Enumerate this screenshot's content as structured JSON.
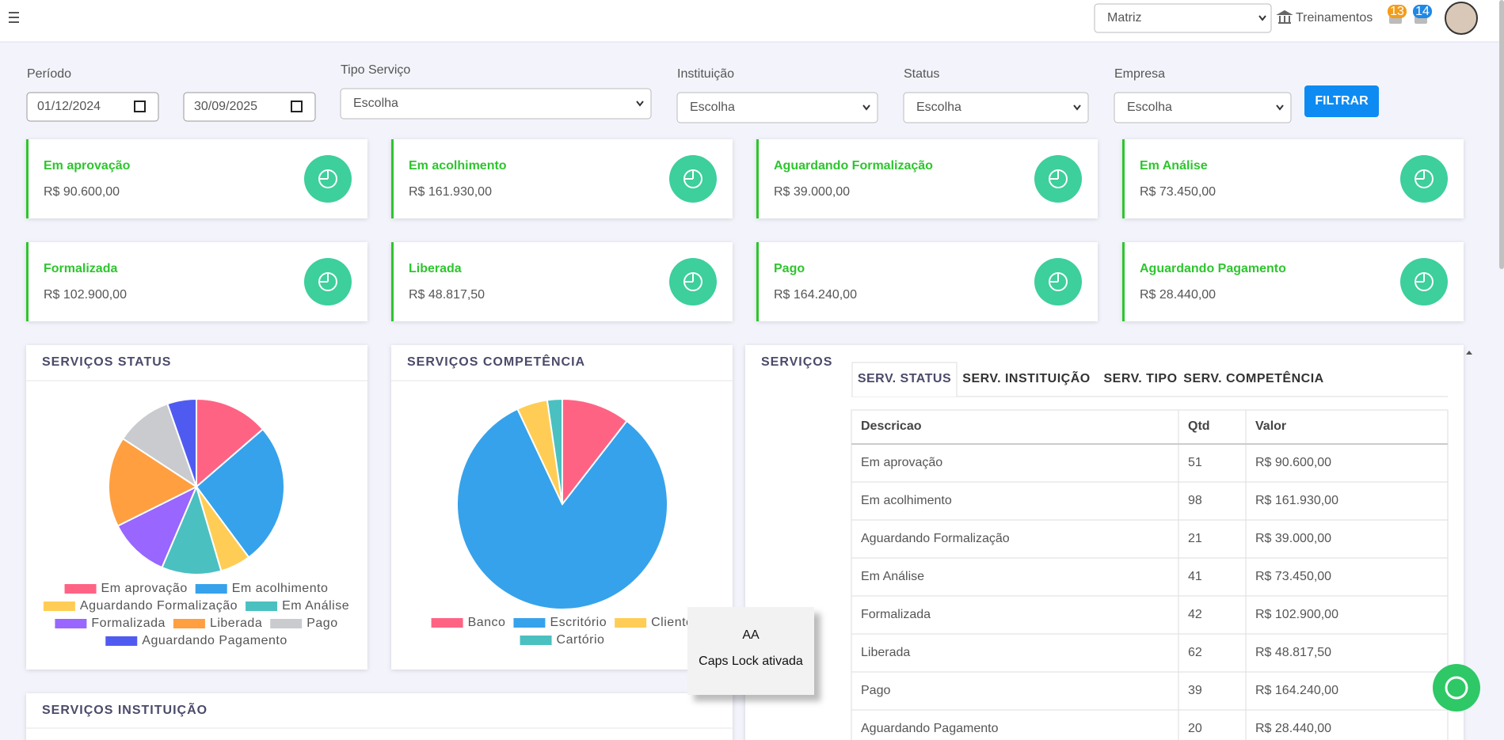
{
  "header": {
    "branch": "Matriz",
    "link": "Treinamentos",
    "badges": [
      "13",
      "14"
    ]
  },
  "filters": {
    "period_label": "Período",
    "start": "01/12/2024",
    "end": "30/09/2025",
    "fields": [
      {
        "label": "Tipo Serviço",
        "value": "Escolha"
      },
      {
        "label": "Instituição",
        "value": "Escolha"
      },
      {
        "label": "Status",
        "value": "Escolha"
      },
      {
        "label": "Empresa",
        "value": "Escolha"
      }
    ],
    "button": "FILTRAR"
  },
  "cards": [
    {
      "title": "Em aprovação",
      "value": "R$ 90.600,00"
    },
    {
      "title": "Em acolhimento",
      "value": "R$ 161.930,00"
    },
    {
      "title": "Aguardando Formalização",
      "value": "R$ 39.000,00"
    },
    {
      "title": "Em Análise",
      "value": "R$ 73.450,00"
    },
    {
      "title": "Formalizada",
      "value": "R$ 102.900,00"
    },
    {
      "title": "Liberada",
      "value": "R$ 48.817,50"
    },
    {
      "title": "Pago",
      "value": "R$ 164.240,00"
    },
    {
      "title": "Aguardando Pagamento",
      "value": "R$ 28.440,00"
    }
  ],
  "chart_data": [
    {
      "type": "pie",
      "title": "SERVIÇOS STATUS",
      "categories": [
        "Em aprovação",
        "Em acolhimento",
        "Aguardando Formalização",
        "Em Análise",
        "Formalizada",
        "Liberada",
        "Pago",
        "Aguardando Pagamento"
      ],
      "values": [
        51,
        98,
        21,
        41,
        42,
        62,
        39,
        20
      ],
      "colors": [
        "#ff6384",
        "#36a2eb",
        "#ffcd56",
        "#4bc0c0",
        "#9966ff",
        "#ff9f40",
        "#c9cbcf",
        "#4f5bf0"
      ]
    },
    {
      "type": "pie",
      "title": "SERVIÇOS COMPETÊNCIA",
      "categories": [
        "Banco",
        "Escritório",
        "Cliente",
        "Cartório"
      ],
      "values": [
        10.5,
        82.5,
        4.7,
        2.3
      ],
      "colors": [
        "#ff6384",
        "#36a2eb",
        "#ffcd56",
        "#4bc0c0"
      ]
    }
  ],
  "services": {
    "title": "SERVIÇOS",
    "tabs": [
      "SERV. STATUS",
      "SERV. INSTITUIÇÃO",
      "SERV. TIPO",
      "SERV. COMPETÊNCIA"
    ],
    "columns": [
      "Descricao",
      "Qtd",
      "Valor"
    ],
    "rows": [
      [
        "Em aprovação",
        51,
        "R$ 90.600,00"
      ],
      [
        "Em acolhimento",
        98,
        "R$ 161.930,00"
      ],
      [
        "Aguardando Formalização",
        21,
        "R$ 39.000,00"
      ],
      [
        "Em Análise",
        41,
        "R$ 73.450,00"
      ],
      [
        "Formalizada",
        42,
        "R$ 102.900,00"
      ],
      [
        "Liberada",
        62,
        "R$ 48.817,50"
      ],
      [
        "Pago",
        39,
        "R$ 164.240,00"
      ],
      [
        "Aguardando Pagamento",
        20,
        "R$ 28.440,00"
      ]
    ]
  },
  "institution": {
    "title": "SERVIÇOS INSTITUIÇÃO"
  },
  "caps_lock": {
    "icon": "AA",
    "text": "Caps Lock ativada"
  }
}
